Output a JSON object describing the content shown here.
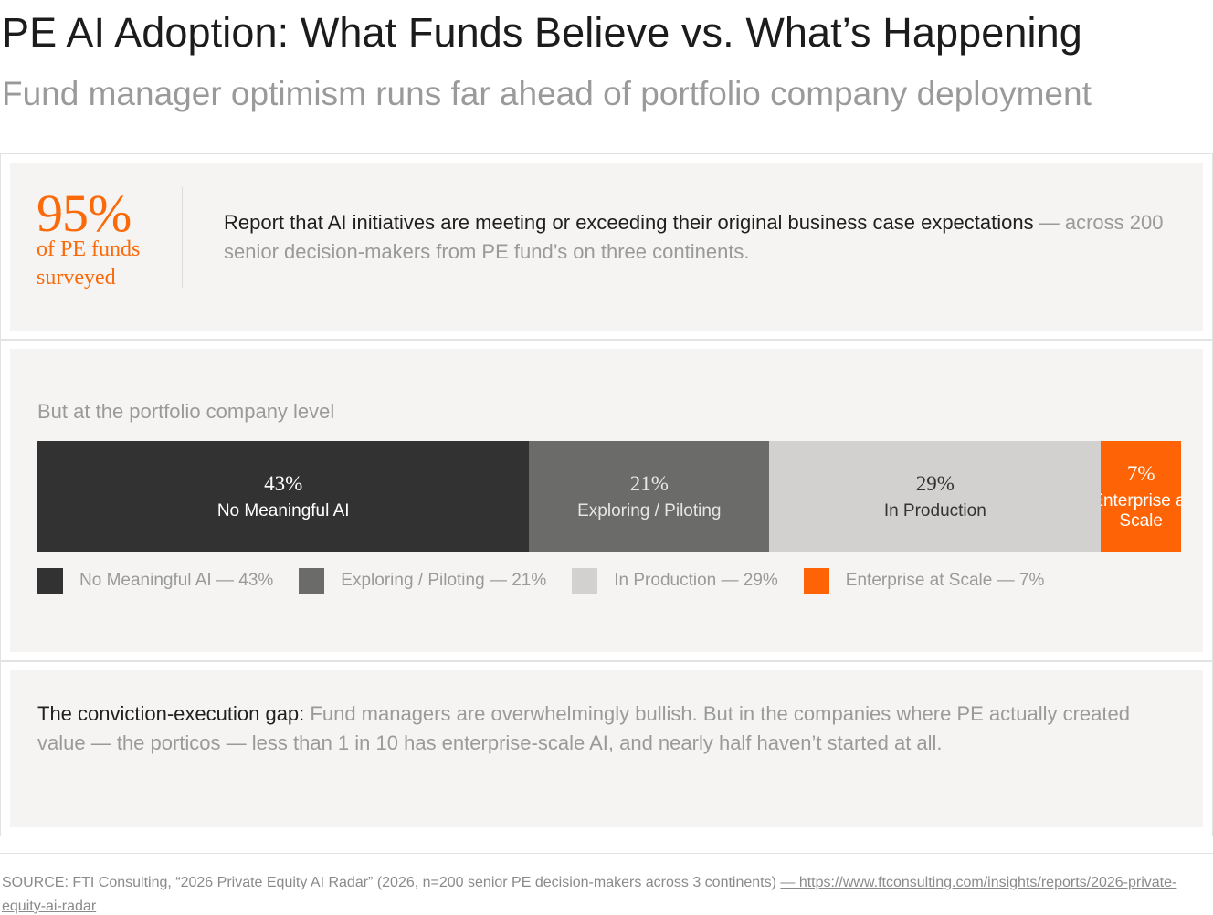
{
  "header": {
    "title": "PE AI Adoption: What Funds Believe vs. What’s Happening",
    "subtitle": "Fund manager optimism runs far ahead of portfolio company deployment"
  },
  "stat": {
    "value": "95%",
    "caption": "of PE funds surveyed",
    "description_strong": "Report that AI initiatives are meeting or exceeding their original business case expectations",
    "description_rest": " — across 200 senior decision-makers from PE fund’s on three continents."
  },
  "chart_label": "But at the portfolio company level",
  "chart_data": {
    "type": "bar",
    "orientation": "horizontal-stacked",
    "title": "",
    "xlabel": "",
    "ylabel": "",
    "xlim": [
      0,
      100
    ],
    "categories": [
      "No Meaningful AI",
      "Exploring / Piloting",
      "In Production",
      "Enterprise at Scale"
    ],
    "values": [
      43,
      21,
      29,
      7
    ],
    "value_labels": [
      "43%",
      "21%",
      "29%",
      "7%"
    ],
    "colors": [
      "#333232",
      "#6b6b6a",
      "#d2d1cf",
      "#fe6406"
    ],
    "text_colors": [
      "#ffffff",
      "#e6e6e6",
      "#333333",
      "#ffffff"
    ],
    "legend": [
      "No Meaningful AI — 43%",
      "Exploring / Piloting — 21%",
      "In Production — 29%",
      "Enterprise at Scale — 7%"
    ],
    "legend_position": "bottom-left"
  },
  "gap": {
    "lead": "The conviction-execution gap:",
    "body": " Fund managers are overwhelmingly bullish. But in the companies where PE actually created value — the porticos — less than 1 in 10 has enterprise-scale AI, and nearly half haven’t started at all."
  },
  "source": {
    "text": "SOURCE: FTI Consulting, “2026 Private Equity AI Radar” (2026, n=200 senior PE decision-makers across 3 continents) ",
    "link_text": "— https://www.ftconsulting.com/insights/reports/2026-private-equity-ai-radar "
  }
}
